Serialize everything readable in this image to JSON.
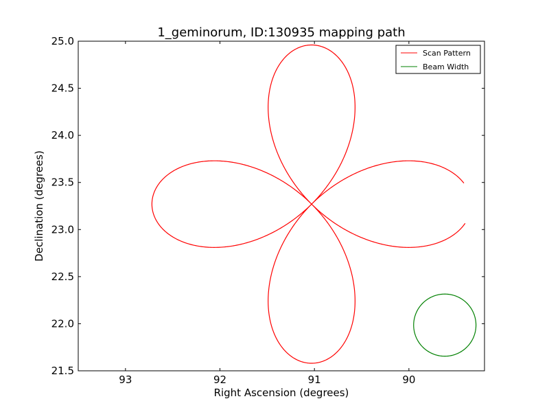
{
  "chart_data": {
    "type": "line",
    "title": "1_geminorum, ID:130935 mapping path",
    "xlabel": "Right Ascension (degrees)",
    "ylabel": "Declination (degrees)",
    "xlim": [
      93.5,
      89.2
    ],
    "ylim": [
      21.5,
      25.0
    ],
    "x_inverted": true,
    "xticks": [
      93,
      92,
      91,
      90
    ],
    "xtick_labels": [
      "93",
      "92",
      "91",
      "90"
    ],
    "yticks": [
      21.5,
      22.0,
      22.5,
      23.0,
      23.5,
      24.0,
      24.5,
      25.0
    ],
    "ytick_labels": [
      "21.5",
      "22.0",
      "22.5",
      "23.0",
      "23.5",
      "24.0",
      "24.5",
      "25.0"
    ],
    "grid": false,
    "legend_position": "top-right",
    "series": [
      {
        "name": "Scan Pattern",
        "color": "#ff0000",
        "kind": "rose-curve",
        "center": [
          91.03,
          23.27
        ],
        "amplitude": 1.69,
        "petals": 4,
        "phase_start_deg": 187.15,
        "phase_end_deg": 532.15
      },
      {
        "name": "Beam Width",
        "color": "#008000",
        "kind": "circle",
        "center": [
          89.62,
          21.985
        ],
        "radius": 0.33
      }
    ]
  }
}
